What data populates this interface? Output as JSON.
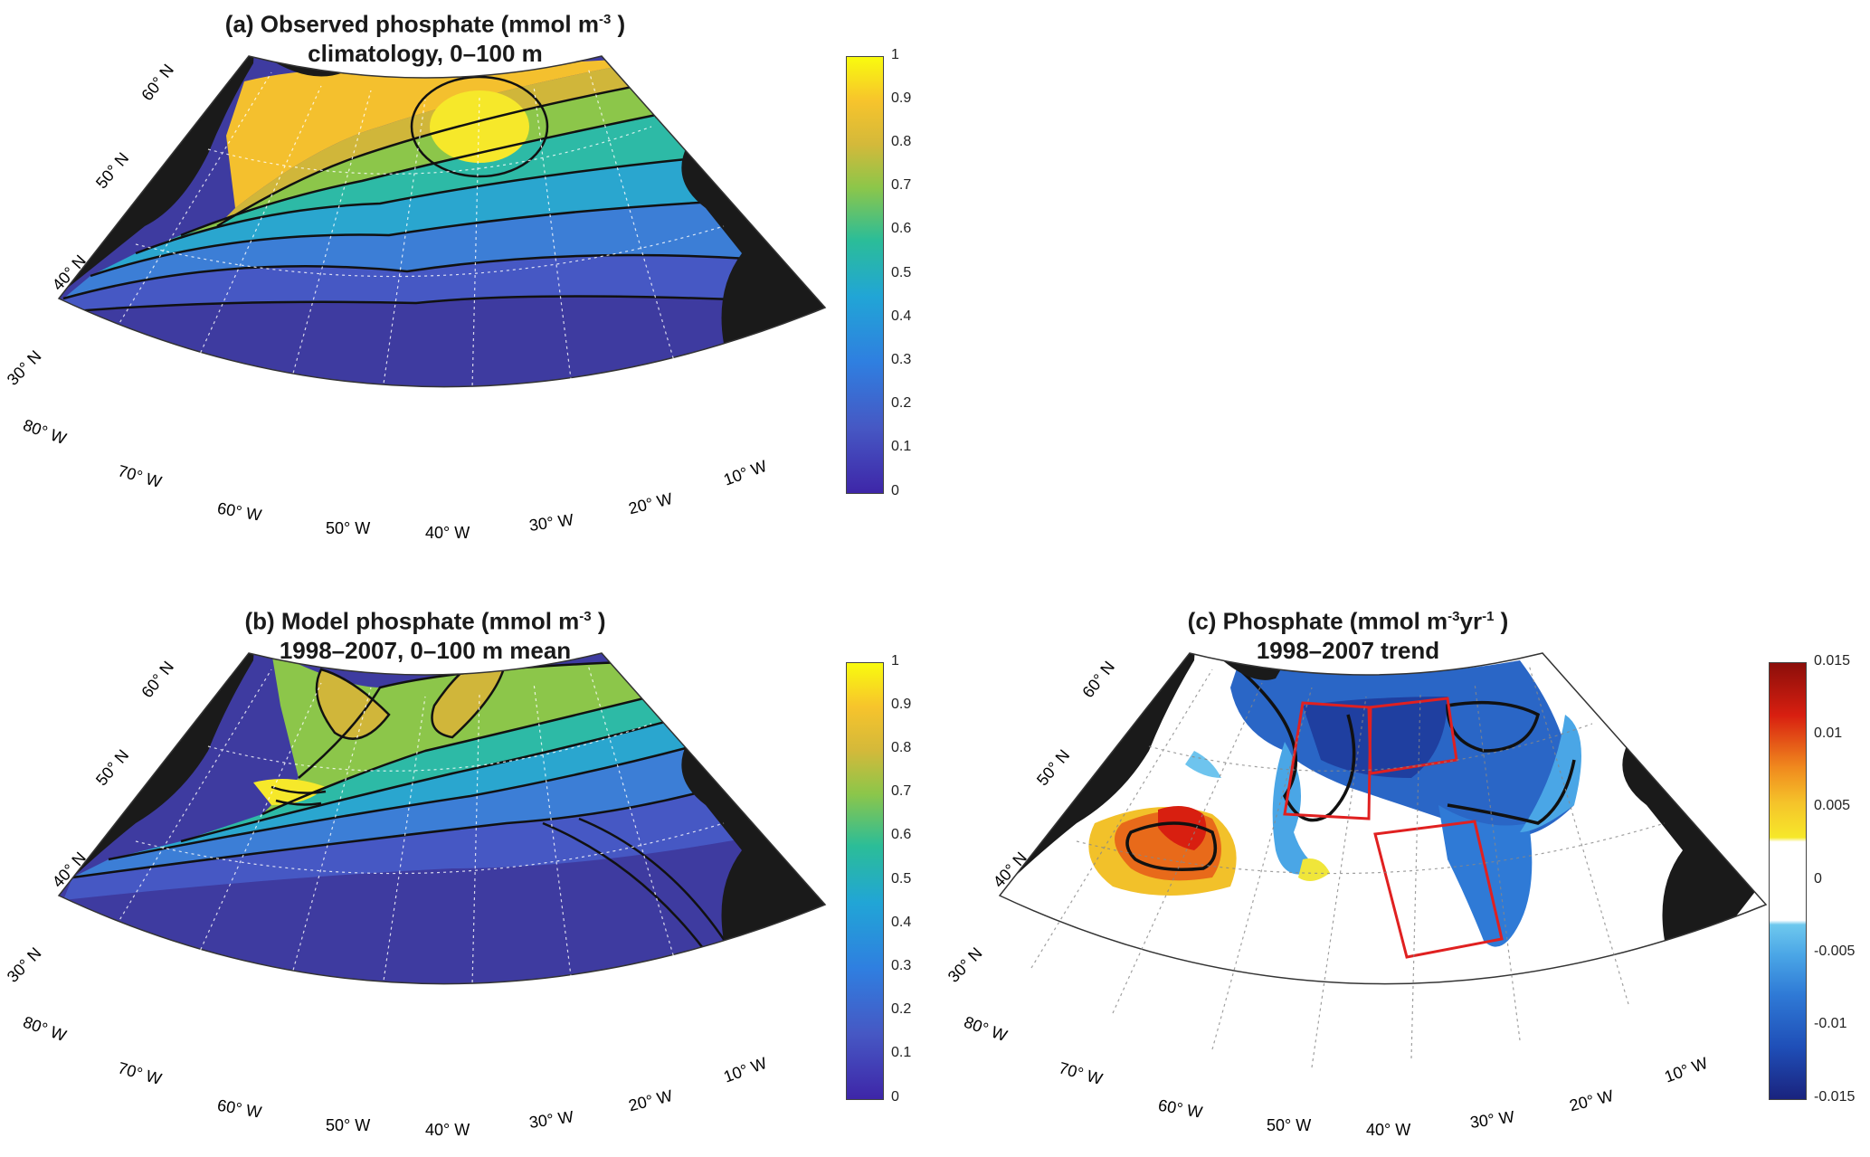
{
  "panels": {
    "a": {
      "title_line1": "(a) Observed phosphate (mmol m",
      "title_exp": "-3",
      "title_close": " )",
      "title_line2": "climatology, 0–100 m",
      "colorbar_ticks": [
        "1",
        "0.9",
        "0.8",
        "0.7",
        "0.6",
        "0.5",
        "0.4",
        "0.3",
        "0.2",
        "0.1",
        "0"
      ],
      "lat_labels": [
        "60° N",
        "50° N",
        "40° N",
        "30° N"
      ],
      "lon_labels": [
        "80° W",
        "70° W",
        "60° W",
        "50° W",
        "40° W",
        "30° W",
        "20° W",
        "10° W"
      ]
    },
    "b": {
      "title_line1": "(b) Model phosphate (mmol m",
      "title_exp": "-3",
      "title_close": " )",
      "title_line2": "1998–2007, 0–100 m mean",
      "colorbar_ticks": [
        "1",
        "0.9",
        "0.8",
        "0.7",
        "0.6",
        "0.5",
        "0.4",
        "0.3",
        "0.2",
        "0.1",
        "0"
      ],
      "lat_labels": [
        "60° N",
        "50° N",
        "40° N",
        "30° N"
      ],
      "lon_labels": [
        "80° W",
        "70° W",
        "60° W",
        "50° W",
        "40° W",
        "30° W",
        "20° W",
        "10° W"
      ]
    },
    "c": {
      "title_line1": "(c) Phosphate (mmol m",
      "title_exp": "-3",
      "title_mid": "yr",
      "title_exp2": "-1",
      "title_close": " )",
      "title_line2": "1998–2007 trend",
      "colorbar_ticks": [
        "0.015",
        "0.01",
        "0.005",
        "0",
        "-0.005",
        "-0.01",
        "-0.015"
      ],
      "lat_labels": [
        "60° N",
        "50° N",
        "40° N",
        "30° N"
      ],
      "lon_labels": [
        "80° W",
        "70° W",
        "60° W",
        "50° W",
        "40° W",
        "30° W",
        "20° W",
        "10° W"
      ]
    }
  },
  "colors": {
    "land": "#1a1a1a",
    "region_boxes": "#e02020",
    "contours": "#111111",
    "parula_low": "#3e26a8",
    "parula_high": "#f9fb0e",
    "trend_neg": "#1f4fb8",
    "trend_pos": "#d81f10"
  }
}
